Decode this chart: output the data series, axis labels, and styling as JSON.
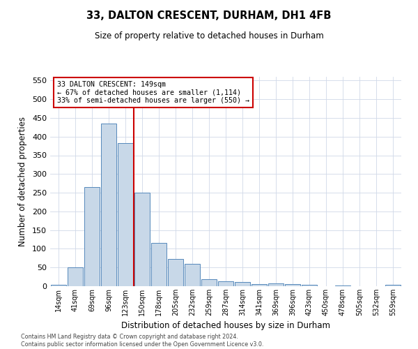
{
  "title1": "33, DALTON CRESCENT, DURHAM, DH1 4FB",
  "title2": "Size of property relative to detached houses in Durham",
  "xlabel": "Distribution of detached houses by size in Durham",
  "ylabel": "Number of detached properties",
  "categories": [
    "14sqm",
    "41sqm",
    "69sqm",
    "96sqm",
    "123sqm",
    "150sqm",
    "178sqm",
    "205sqm",
    "232sqm",
    "259sqm",
    "287sqm",
    "314sqm",
    "341sqm",
    "369sqm",
    "396sqm",
    "423sqm",
    "450sqm",
    "478sqm",
    "505sqm",
    "532sqm",
    "559sqm"
  ],
  "values": [
    3,
    50,
    265,
    435,
    383,
    250,
    115,
    72,
    60,
    18,
    14,
    12,
    6,
    7,
    5,
    3,
    0,
    2,
    0,
    0,
    3
  ],
  "bar_color": "#c8d8e8",
  "bar_edge_color": "#5588bb",
  "grid_color": "#d0d8e8",
  "annotation_box_color": "#cc0000",
  "vline_color": "#cc0000",
  "vline_position": 5,
  "annotation_text": "33 DALTON CRESCENT: 149sqm\n← 67% of detached houses are smaller (1,114)\n33% of semi-detached houses are larger (550) →",
  "footer_text": "Contains HM Land Registry data © Crown copyright and database right 2024.\nContains public sector information licensed under the Open Government Licence v3.0.",
  "ylim": [
    0,
    560
  ],
  "yticks": [
    0,
    50,
    100,
    150,
    200,
    250,
    300,
    350,
    400,
    450,
    500,
    550
  ]
}
